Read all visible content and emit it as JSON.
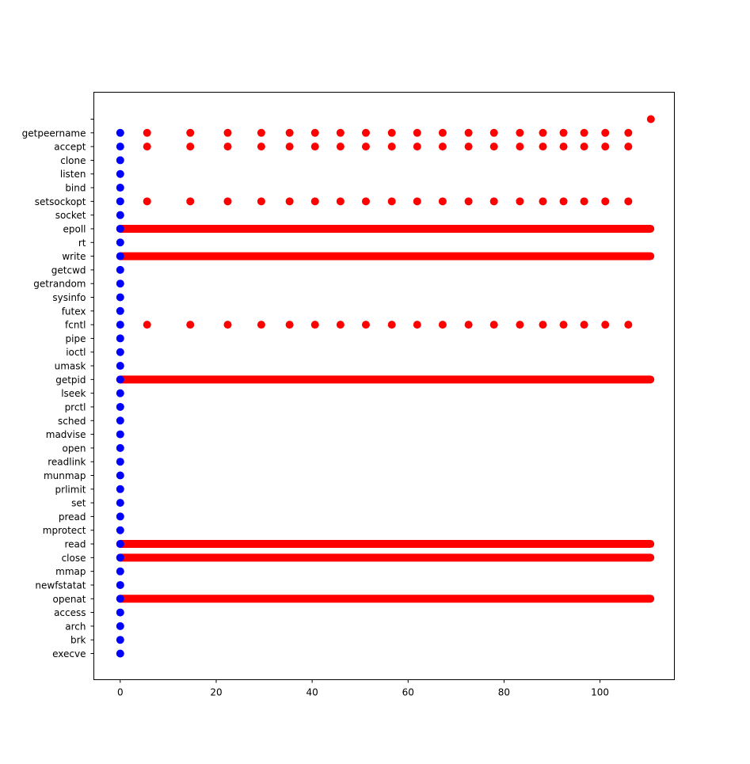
{
  "chart_data": {
    "type": "scatter",
    "title": "",
    "xlabel": "",
    "ylabel": "",
    "xlim": [
      -5.5,
      115.5
    ],
    "xticks": [
      0,
      20,
      40,
      60,
      80,
      100
    ],
    "categories": [
      "execve",
      "brk",
      "arch",
      "access",
      "openat",
      "newfstatat",
      "mmap",
      "close",
      "read",
      "mprotect",
      "pread",
      "set",
      "prlimit",
      "munmap",
      "readlink",
      "open",
      "madvise",
      "sched",
      "prctl",
      "lseek",
      "getpid",
      "umask",
      "ioctl",
      "pipe",
      "fcntl",
      "futex",
      "sysinfo",
      "getrandom",
      "getcwd",
      "write",
      "rt",
      "epoll",
      "socket",
      "setsockopt",
      "bind",
      "listen",
      "clone",
      "accept",
      "getpeername",
      ""
    ],
    "grid": false,
    "legend": "none",
    "series": [
      {
        "color": "#0000ff",
        "description": "startup calls near t=0",
        "x_points": [
          0
        ],
        "categories_present": [
          "execve",
          "brk",
          "arch",
          "access",
          "openat",
          "newfstatat",
          "mmap",
          "close",
          "read",
          "mprotect",
          "pread",
          "set",
          "prlimit",
          "munmap",
          "readlink",
          "open",
          "madvise",
          "sched",
          "prctl",
          "lseek",
          "getpid",
          "umask",
          "ioctl",
          "pipe",
          "fcntl",
          "futex",
          "sysinfo",
          "getrandom",
          "getcwd",
          "write",
          "rt",
          "epoll",
          "socket",
          "setsockopt",
          "bind",
          "listen",
          "clone",
          "accept",
          "getpeername"
        ]
      },
      {
        "color": "#ff0000",
        "description": "periodic calls",
        "x_points": [
          5.6,
          14.6,
          22.4,
          29.4,
          35.3,
          40.6,
          45.9,
          51.2,
          56.6,
          61.9,
          67.2,
          72.6,
          77.9,
          83.3,
          88.1,
          92.4,
          96.7,
          101.1,
          105.9
        ],
        "categories_present": [
          "getpeername",
          "accept",
          "setsockopt",
          "fcntl"
        ]
      },
      {
        "color": "#ff0000",
        "description": "continuous calls",
        "x_range": [
          0,
          110.5
        ],
        "categories_present": [
          "epoll",
          "write",
          "read",
          "close",
          "openat",
          "getpid"
        ]
      },
      {
        "color": "#ff0000",
        "description": "single point",
        "points": [
          {
            "x": 110.6,
            "y": ""
          }
        ]
      }
    ]
  }
}
